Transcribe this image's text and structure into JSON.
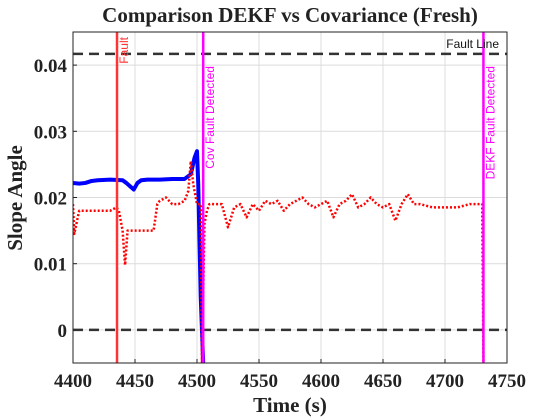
{
  "chart_data": {
    "type": "line",
    "title": "Comparison DEKF vs Covariance (Fresh)",
    "x_label": "Time (s)",
    "y_label": "Slope Angle",
    "xlim": [
      4400,
      4750
    ],
    "xticks": [
      4400,
      4450,
      4500,
      4550,
      4600,
      4650,
      4700,
      4750
    ],
    "ylim": [
      -0.005,
      0.045
    ],
    "yticks": [
      0,
      0.01,
      0.02,
      0.03,
      0.04
    ],
    "grid": true,
    "series": [
      {
        "color": "#0000ff",
        "line_style": "solid",
        "x": [
          4400,
          4405,
          4410,
          4415,
          4420,
          4430,
          4440,
          4443,
          4446,
          4449,
          4452,
          4455,
          4460,
          4470,
          4480,
          4490,
          4495,
          4498,
          4500,
          4501,
          4503,
          4505
        ],
        "values": [
          0.0222,
          0.0221,
          0.0222,
          0.0225,
          0.0226,
          0.0227,
          0.0226,
          0.0222,
          0.0217,
          0.0212,
          0.0222,
          0.0226,
          0.0227,
          0.0227,
          0.0228,
          0.0228,
          0.0235,
          0.026,
          0.027,
          0.022,
          0.005,
          -0.005
        ]
      },
      {
        "color": "#ff0000",
        "line_style": "dotted",
        "x": [
          4400,
          4401,
          4405,
          4410,
          4415,
          4420,
          4425,
          4430,
          4435,
          4437,
          4440,
          4442,
          4444,
          4446,
          4450,
          4455,
          4460,
          4465,
          4468,
          4470,
          4475,
          4480,
          4485,
          4490,
          4493,
          4495,
          4497,
          4500,
          4503,
          4504,
          4506,
          4508,
          4510,
          4515,
          4520,
          4525,
          4530,
          4535,
          4540,
          4545,
          4550,
          4555,
          4560,
          4565,
          4570,
          4575,
          4580,
          4585,
          4590,
          4595,
          4600,
          4605,
          4610,
          4615,
          4620,
          4625,
          4630,
          4635,
          4640,
          4645,
          4650,
          4655,
          4660,
          4665,
          4670,
          4675,
          4680,
          4690,
          4700,
          4710,
          4720,
          4728,
          4730,
          4731
        ],
        "values": [
          0.019,
          0.0145,
          0.018,
          0.018,
          0.018,
          0.018,
          0.018,
          0.018,
          0.0185,
          0.018,
          0.015,
          0.0098,
          0.015,
          0.015,
          0.015,
          0.015,
          0.015,
          0.015,
          0.019,
          0.0195,
          0.02,
          0.019,
          0.019,
          0.0195,
          0.021,
          0.0255,
          0.022,
          0.019,
          0.019,
          -0.005,
          0.016,
          0.018,
          0.019,
          0.019,
          0.019,
          0.0155,
          0.0185,
          0.019,
          0.017,
          0.019,
          0.018,
          0.0195,
          0.019,
          0.0195,
          0.018,
          0.019,
          0.0195,
          0.02,
          0.019,
          0.0185,
          0.019,
          0.0195,
          0.017,
          0.019,
          0.0195,
          0.0205,
          0.0185,
          0.019,
          0.02,
          0.019,
          0.0185,
          0.019,
          0.0165,
          0.019,
          0.0205,
          0.019,
          0.019,
          0.0185,
          0.0185,
          0.0185,
          0.019,
          0.019,
          0.019,
          -0.005
        ]
      }
    ],
    "vlines": [
      {
        "x": 4435.5,
        "label": "Fault",
        "color": "#ff3333"
      },
      {
        "x": 4505,
        "label": "Cov Fault Detected",
        "color": "#ff00ff"
      },
      {
        "x": 4731,
        "label": "DEKF Fault Detected",
        "color": "#ff00ff"
      }
    ],
    "hlines": [
      {
        "y": 0.0417,
        "label": "Fault Line",
        "color": "#333333"
      },
      {
        "y": 0,
        "color": "#333333"
      }
    ]
  }
}
